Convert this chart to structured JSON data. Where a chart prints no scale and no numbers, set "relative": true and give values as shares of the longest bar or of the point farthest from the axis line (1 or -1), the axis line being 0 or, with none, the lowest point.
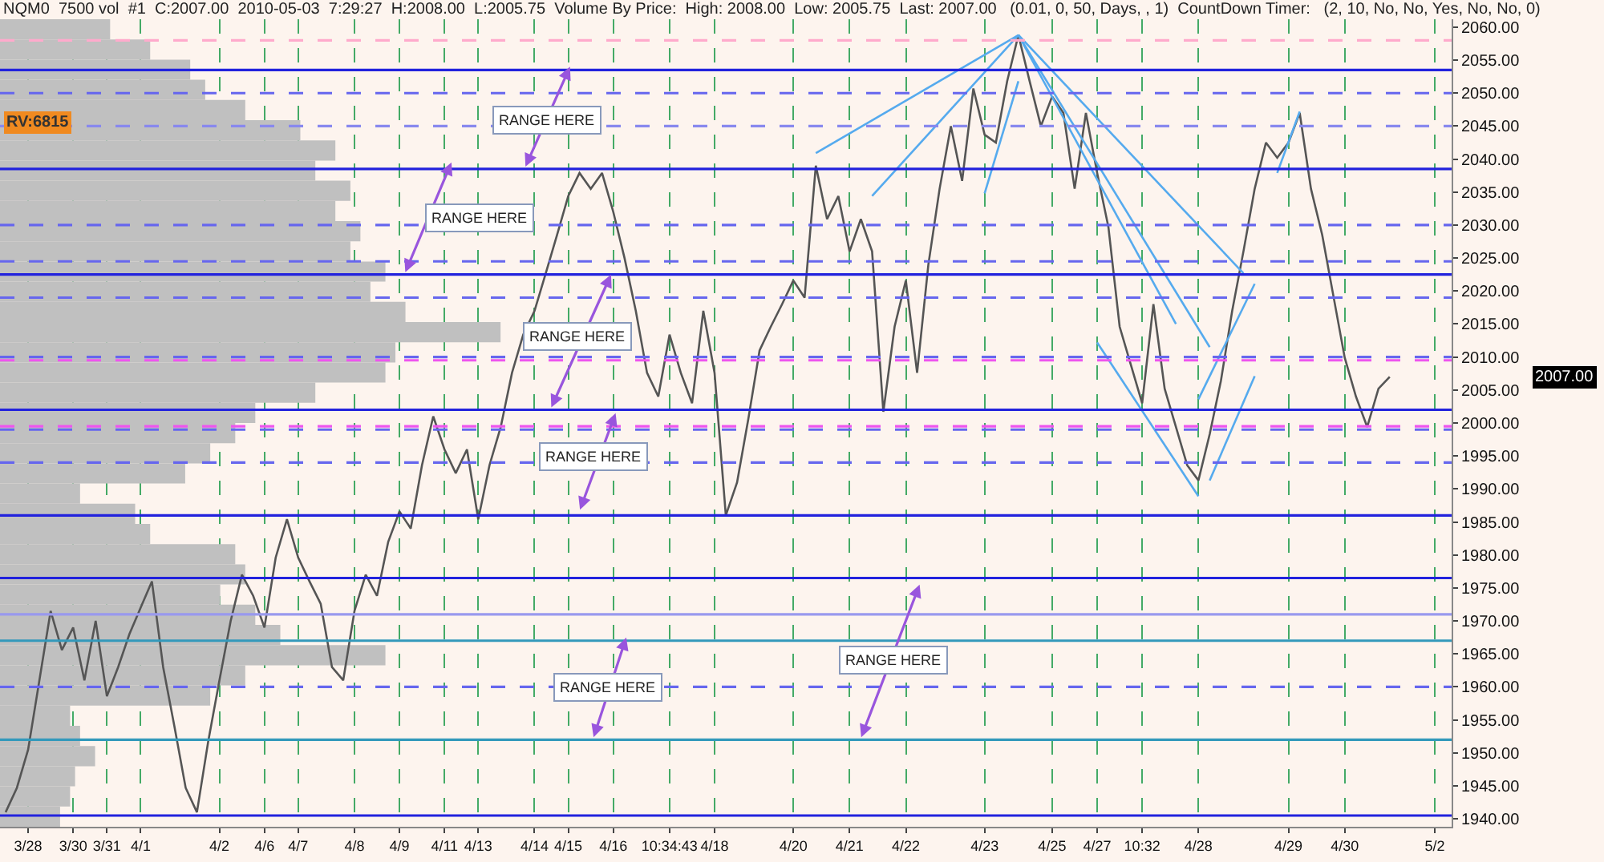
{
  "chart_data": [
    {
      "type": "line",
      "title": "NQM0  7500 vol  #1  C:2007.00  2010-05-03  7:29:27  H:2008.00  L:2005.75  Volume By Price:  High: 2008.00  Low: 2005.75  Last: 2007.00   (0.01, 0, 50, Days, , 1)  CountDown Timer:   (2, 10, No, No, Yes, No, No, 0)",
      "annotations": [
        "RV:6815",
        "RANGE HERE",
        "RANGE HERE",
        "RANGE HERE",
        "RANGE HERE",
        "RANGE HERE",
        "RANGE HERE",
        "2007.00"
      ],
      "categories": [
        null,
        null,
        "3/28",
        null,
        null,
        null,
        "3/30",
        null,
        null,
        "3/31",
        null,
        null,
        "4/1",
        null,
        null,
        null,
        null,
        null,
        null,
        "4/2",
        null,
        null,
        null,
        "4/6",
        null,
        null,
        "4/7",
        null,
        null,
        null,
        null,
        "4/8",
        null,
        null,
        null,
        "4/9",
        null,
        null,
        null,
        "4/11",
        null,
        null,
        "4/13",
        null,
        null,
        null,
        null,
        "4/14",
        null,
        null,
        "4/15",
        null,
        null,
        null,
        "4/16",
        null,
        null,
        null,
        null,
        "10:34:43",
        null,
        null,
        null,
        "4/18",
        null,
        null,
        null,
        null,
        null,
        null,
        "4/20",
        null,
        null,
        null,
        null,
        "4/21",
        null,
        null,
        null,
        null,
        "4/22",
        null,
        null,
        null,
        null,
        null,
        null,
        "4/23",
        null,
        null,
        null,
        null,
        null,
        "4/25",
        null,
        null,
        null,
        "4/27",
        null,
        null,
        null,
        "10:32",
        null,
        null,
        null,
        null,
        "4/28",
        null,
        null,
        null,
        null,
        null,
        null,
        null,
        "4/29",
        null,
        null,
        null,
        null,
        "4/30",
        null,
        null,
        null,
        null,
        null,
        null,
        null,
        "5/2",
        null
      ],
      "ylim": [
        1938.8,
        2061.2
      ],
      "yticks": [
        {
          "value": 1940,
          "label": "1940.00"
        },
        {
          "value": 1945,
          "label": "1945.00"
        },
        {
          "value": 1950,
          "label": "1950.00"
        },
        {
          "value": 1955,
          "label": "1955.00"
        },
        {
          "value": 1960,
          "label": "1960.00"
        },
        {
          "value": 1965,
          "label": "1965.00"
        },
        {
          "value": 1970,
          "label": "1970.00"
        },
        {
          "value": 1975,
          "label": "1975.00"
        },
        {
          "value": 1980,
          "label": "1980.00"
        },
        {
          "value": 1985,
          "label": "1985.00"
        },
        {
          "value": 1990,
          "label": "1990.00"
        },
        {
          "value": 1995,
          "label": "1995.00"
        },
        {
          "value": 2000,
          "label": "2000.00"
        },
        {
          "value": 2005,
          "label": "2005.00"
        },
        {
          "value": 2010,
          "label": "2010.00"
        },
        {
          "value": 2015,
          "label": "2015.00"
        },
        {
          "value": 2020,
          "label": "2020.00"
        },
        {
          "value": 2025,
          "label": "2025.00"
        },
        {
          "value": 2030,
          "label": "2030.00"
        },
        {
          "value": 2035,
          "label": "2035.00"
        },
        {
          "value": 2040,
          "label": "2040.00"
        },
        {
          "value": 2045,
          "label": "2045.00"
        },
        {
          "value": 2050,
          "label": "2050.00"
        },
        {
          "value": 2055,
          "label": "2055.00"
        },
        {
          "value": 2060,
          "label": "2060.00"
        }
      ],
      "grid": "x",
      "marker": "none",
      "line_style": "solid",
      "ref_lines": [
        {
          "axis": "y",
          "value": 2058,
          "color": "#ffaacc",
          "line_style": "dashed"
        },
        {
          "axis": "y",
          "value": 2053.5,
          "color": "#2222dd",
          "line_style": "solid"
        },
        {
          "axis": "y",
          "value": 2050,
          "color": "#6666ee",
          "line_style": "dashed"
        },
        {
          "axis": "y",
          "value": 2045,
          "color": "#8888ee",
          "line_style": "dashed"
        },
        {
          "axis": "y",
          "value": 2038.5,
          "color": "#2222dd",
          "line_style": "solid"
        },
        {
          "axis": "y",
          "value": 2030,
          "color": "#6666ee",
          "line_style": "dashed"
        },
        {
          "axis": "y",
          "value": 2024.5,
          "color": "#6666ee",
          "line_style": "dashed"
        },
        {
          "axis": "y",
          "value": 2022.5,
          "color": "#2222dd",
          "line_style": "solid"
        },
        {
          "axis": "y",
          "value": 2019,
          "color": "#6666ee",
          "line_style": "dashed"
        },
        {
          "axis": "y",
          "value": 2010,
          "color": "#6666ee",
          "line_style": "dashed"
        },
        {
          "axis": "y",
          "value": 2009.5,
          "color": "#ee55ee",
          "line_style": "dashed"
        },
        {
          "axis": "y",
          "value": 2002,
          "color": "#2222dd",
          "line_style": "solid"
        },
        {
          "axis": "y",
          "value": 1999.5,
          "color": "#ee55ee",
          "line_style": "dashed"
        },
        {
          "axis": "y",
          "value": 1999,
          "color": "#6666ee",
          "line_style": "dashed"
        },
        {
          "axis": "y",
          "value": 1994,
          "color": "#6666ee",
          "line_style": "dashed"
        },
        {
          "axis": "y",
          "value": 1986,
          "color": "#2222dd",
          "line_style": "solid"
        },
        {
          "axis": "y",
          "value": 1976.5,
          "color": "#2222dd",
          "line_style": "solid"
        },
        {
          "axis": "y",
          "value": 1971,
          "color": "#9999ee",
          "line_style": "solid"
        },
        {
          "axis": "y",
          "value": 1967,
          "color": "#3399bb",
          "line_style": "solid"
        },
        {
          "axis": "y",
          "value": 1960,
          "color": "#6666ee",
          "line_style": "dashed"
        },
        {
          "axis": "y",
          "value": 1952,
          "color": "#3399bb",
          "line_style": "solid"
        },
        {
          "axis": "y",
          "value": 1940.5,
          "color": "#2222dd",
          "line_style": "solid"
        }
      ],
      "series": [
        {
          "color": "#555555",
          "values": [
            1941,
            1944.7,
            1950.5,
            1961,
            1971.5,
            1965.6,
            1969,
            1961,
            1970,
            1958.6,
            1963,
            1968,
            1972,
            1976,
            1963,
            1954,
            1944.7,
            1941,
            1951.7,
            1961,
            1970,
            1977,
            1973.8,
            1969,
            1979.6,
            1985.4,
            1979.6,
            1976,
            1972.6,
            1963,
            1961,
            1971.5,
            1977,
            1973.8,
            1982,
            1986.6,
            1984,
            1993.6,
            2001,
            1996,
            1992.4,
            1996,
            1985.4,
            1993.6,
            1999.4,
            2007.6,
            2013.4,
            2017,
            2022.7,
            2028.5,
            2034.4,
            2037.9,
            2035.5,
            2037.9,
            2032,
            2025,
            2017,
            2007.6,
            2004,
            2013.4,
            2007.6,
            2003,
            2017,
            2007.6,
            1986,
            1991,
            2000.6,
            2011,
            2014.6,
            2018,
            2021.6,
            2019,
            2039,
            2030.9,
            2034.4,
            2026,
            2030.9,
            2026,
            2001.7,
            2014.6,
            2021.6,
            2007.6,
            2024,
            2035.5,
            2045,
            2036.7,
            2050.7,
            2043.7,
            2042.5,
            2051.8,
            2058.8,
            2051.8,
            2045,
            2049.5,
            2047,
            2035.5,
            2047,
            2037.9,
            2029.7,
            2014.6,
            2008.8,
            2003,
            2018,
            2005.2,
            1999.4,
            1993.6,
            1991.3,
            1998.3,
            2006.4,
            2017,
            2026,
            2035.5,
            2042.5,
            2040.2,
            2042.5,
            2047,
            2035.5,
            2028.5,
            2019.2,
            2009.9,
            2004,
            1999.4,
            2005.2,
            2007,
            null,
            null,
            null,
            null,
            null
          ]
        },
        {
          "type": "line",
          "color": "#55aaee",
          "values": [
            null,
            null,
            null,
            null,
            null,
            null,
            null,
            null,
            null,
            null,
            null,
            null,
            null,
            null,
            null,
            null,
            null,
            null,
            null,
            null,
            null,
            null,
            null,
            null,
            null,
            null,
            null,
            null,
            null,
            null,
            null,
            null,
            null,
            null,
            null,
            null,
            null,
            null,
            null,
            null,
            null,
            null,
            null,
            null,
            null,
            null,
            null,
            null,
            null,
            null,
            null,
            null,
            null,
            null,
            null,
            null,
            null,
            null,
            null,
            null,
            null,
            null,
            null,
            null,
            null,
            null,
            null,
            null,
            null,
            null,
            null,
            null,
            2040.9,
            null,
            null,
            null,
            null,
            null,
            null,
            null,
            null,
            null,
            null,
            null,
            null,
            null,
            null,
            null,
            null,
            null,
            2058.8,
            null,
            null,
            null,
            null,
            null,
            null,
            null,
            null,
            null,
            null,
            null,
            null,
            null,
            null,
            null,
            null,
            null,
            null,
            null,
            null,
            null,
            null,
            null,
            null,
            null,
            null,
            null,
            null,
            null,
            null,
            null,
            null,
            null,
            null,
            null,
            null,
            null,
            null
          ]
        },
        {
          "type": "line",
          "color": "#55aaee",
          "values": [
            null,
            null,
            null,
            null,
            null,
            null,
            null,
            null,
            null,
            null,
            null,
            null,
            null,
            null,
            null,
            null,
            null,
            null,
            null,
            null,
            null,
            null,
            null,
            null,
            null,
            null,
            null,
            null,
            null,
            null,
            null,
            null,
            null,
            null,
            null,
            null,
            null,
            null,
            null,
            null,
            null,
            null,
            null,
            null,
            null,
            null,
            null,
            null,
            null,
            null,
            null,
            null,
            null,
            null,
            null,
            null,
            null,
            null,
            null,
            null,
            null,
            null,
            null,
            null,
            null,
            null,
            null,
            null,
            null,
            null,
            null,
            null,
            null,
            null,
            null,
            null,
            null,
            2034.4,
            null,
            null,
            null,
            null,
            null,
            null,
            null,
            null,
            null,
            null,
            null,
            null,
            2058.8,
            null,
            null,
            null,
            null,
            null,
            null,
            null,
            null,
            null,
            null,
            null,
            null,
            null,
            null,
            null,
            null,
            null,
            null,
            null,
            null,
            null,
            null,
            null,
            null,
            null,
            null,
            null,
            null,
            null,
            null,
            null,
            null,
            null,
            null,
            null,
            null,
            null,
            null
          ]
        },
        {
          "type": "line",
          "color": "#55aaee",
          "values": [
            null,
            null,
            null,
            null,
            null,
            null,
            null,
            null,
            null,
            null,
            null,
            null,
            null,
            null,
            null,
            null,
            null,
            null,
            null,
            null,
            null,
            null,
            null,
            null,
            null,
            null,
            null,
            null,
            null,
            null,
            null,
            null,
            null,
            null,
            null,
            null,
            null,
            null,
            null,
            null,
            null,
            null,
            null,
            null,
            null,
            null,
            null,
            null,
            null,
            null,
            null,
            null,
            null,
            null,
            null,
            null,
            null,
            null,
            null,
            null,
            null,
            null,
            null,
            null,
            null,
            null,
            null,
            null,
            null,
            null,
            null,
            null,
            null,
            null,
            null,
            null,
            null,
            null,
            null,
            null,
            null,
            null,
            null,
            null,
            null,
            null,
            null,
            null,
            null,
            null,
            2058.8,
            null,
            null,
            null,
            null,
            null,
            null,
            null,
            null,
            null,
            null,
            null,
            null,
            null,
            null,
            null,
            null,
            null,
            null,
            null,
            2022.7,
            null,
            null,
            null,
            null,
            null,
            null,
            null,
            null,
            null,
            null,
            null,
            null,
            null,
            null,
            null,
            null,
            null,
            null
          ]
        },
        {
          "type": "line",
          "color": "#55aaee",
          "values": [
            null,
            null,
            null,
            null,
            null,
            null,
            null,
            null,
            null,
            null,
            null,
            null,
            null,
            null,
            null,
            null,
            null,
            null,
            null,
            null,
            null,
            null,
            null,
            null,
            null,
            null,
            null,
            null,
            null,
            null,
            null,
            null,
            null,
            null,
            null,
            null,
            null,
            null,
            null,
            null,
            null,
            null,
            null,
            null,
            null,
            null,
            null,
            null,
            null,
            null,
            null,
            null,
            null,
            null,
            null,
            null,
            null,
            null,
            null,
            null,
            null,
            null,
            null,
            null,
            null,
            null,
            null,
            null,
            null,
            null,
            null,
            null,
            null,
            null,
            null,
            null,
            null,
            null,
            null,
            null,
            null,
            null,
            null,
            null,
            null,
            null,
            null,
            null,
            null,
            null,
            2058.8,
            null,
            null,
            null,
            null,
            null,
            null,
            null,
            null,
            null,
            null,
            null,
            null,
            null,
            null,
            null,
            null,
            2011.5,
            null,
            null,
            null,
            null,
            null,
            null,
            null,
            null,
            null,
            null,
            null,
            null,
            null,
            null,
            null,
            null,
            null,
            null,
            null,
            null,
            null
          ]
        },
        {
          "type": "line",
          "color": "#55aaee",
          "values": [
            null,
            null,
            null,
            null,
            null,
            null,
            null,
            null,
            null,
            null,
            null,
            null,
            null,
            null,
            null,
            null,
            null,
            null,
            null,
            null,
            null,
            null,
            null,
            null,
            null,
            null,
            null,
            null,
            null,
            null,
            null,
            null,
            null,
            null,
            null,
            null,
            null,
            null,
            null,
            null,
            null,
            null,
            null,
            null,
            null,
            null,
            null,
            null,
            null,
            null,
            null,
            null,
            null,
            null,
            null,
            null,
            null,
            null,
            null,
            null,
            null,
            null,
            null,
            null,
            null,
            null,
            null,
            null,
            null,
            null,
            null,
            null,
            null,
            null,
            null,
            null,
            null,
            null,
            null,
            null,
            null,
            null,
            null,
            null,
            null,
            null,
            null,
            null,
            null,
            null,
            2058.8,
            null,
            null,
            null,
            null,
            null,
            null,
            null,
            null,
            null,
            null,
            null,
            null,
            null,
            2015,
            null,
            null,
            null,
            null,
            null,
            null,
            null,
            null,
            null,
            null,
            null,
            null,
            null,
            null,
            null,
            null,
            null,
            null,
            null,
            null,
            null,
            null,
            null,
            null
          ]
        },
        {
          "type": "line",
          "color": "#55aaee",
          "values": [
            null,
            null,
            null,
            null,
            null,
            null,
            null,
            null,
            null,
            null,
            null,
            null,
            null,
            null,
            null,
            null,
            null,
            null,
            null,
            null,
            null,
            null,
            null,
            null,
            null,
            null,
            null,
            null,
            null,
            null,
            null,
            null,
            null,
            null,
            null,
            null,
            null,
            null,
            null,
            null,
            null,
            null,
            null,
            null,
            null,
            null,
            null,
            null,
            null,
            null,
            null,
            null,
            null,
            null,
            null,
            null,
            null,
            null,
            null,
            null,
            null,
            null,
            null,
            null,
            null,
            null,
            null,
            null,
            null,
            null,
            null,
            null,
            null,
            null,
            null,
            null,
            null,
            null,
            null,
            null,
            null,
            null,
            null,
            null,
            null,
            null,
            null,
            2034.8,
            null,
            null,
            2051.8,
            null,
            null,
            null,
            null,
            null,
            null,
            null,
            null,
            null,
            null,
            null,
            null,
            null,
            null,
            null,
            null,
            null,
            null,
            null,
            null,
            null,
            null,
            null,
            null,
            null,
            null,
            null,
            null,
            null,
            null,
            null,
            null,
            null,
            null,
            null,
            null,
            null,
            null
          ]
        },
        {
          "type": "line",
          "color": "#55aaee",
          "values": [
            null,
            null,
            null,
            null,
            null,
            null,
            null,
            null,
            null,
            null,
            null,
            null,
            null,
            null,
            null,
            null,
            null,
            null,
            null,
            null,
            null,
            null,
            null,
            null,
            null,
            null,
            null,
            null,
            null,
            null,
            null,
            null,
            null,
            null,
            null,
            null,
            null,
            null,
            null,
            null,
            null,
            null,
            null,
            null,
            null,
            null,
            null,
            null,
            null,
            null,
            null,
            null,
            null,
            null,
            null,
            null,
            null,
            null,
            null,
            null,
            null,
            null,
            null,
            null,
            null,
            null,
            null,
            null,
            null,
            null,
            null,
            null,
            null,
            null,
            null,
            null,
            null,
            null,
            null,
            null,
            null,
            null,
            null,
            null,
            null,
            null,
            null,
            null,
            null,
            null,
            null,
            null,
            null,
            null,
            null,
            null,
            null,
            2012.2,
            null,
            null,
            null,
            null,
            null,
            null,
            null,
            null,
            1988.9,
            null,
            null,
            null,
            null,
            null,
            null,
            null,
            null,
            null,
            null,
            null,
            null,
            null,
            null,
            null,
            null,
            null,
            null,
            null,
            null,
            null,
            null
          ]
        },
        {
          "type": "line",
          "color": "#55aaee",
          "values": [
            null,
            null,
            null,
            null,
            null,
            null,
            null,
            null,
            null,
            null,
            null,
            null,
            null,
            null,
            null,
            null,
            null,
            null,
            null,
            null,
            null,
            null,
            null,
            null,
            null,
            null,
            null,
            null,
            null,
            null,
            null,
            null,
            null,
            null,
            null,
            null,
            null,
            null,
            null,
            null,
            null,
            null,
            null,
            null,
            null,
            null,
            null,
            null,
            null,
            null,
            null,
            null,
            null,
            null,
            null,
            null,
            null,
            null,
            null,
            null,
            null,
            null,
            null,
            null,
            null,
            null,
            null,
            null,
            null,
            null,
            null,
            null,
            null,
            null,
            null,
            null,
            null,
            null,
            null,
            null,
            null,
            null,
            null,
            null,
            null,
            null,
            null,
            null,
            null,
            null,
            null,
            null,
            null,
            null,
            null,
            null,
            null,
            null,
            null,
            null,
            null,
            null,
            null,
            null,
            null,
            null,
            2003.6,
            null,
            null,
            null,
            null,
            2021.1,
            null,
            null,
            null,
            null,
            null,
            null,
            null,
            null,
            null,
            null,
            null,
            null,
            null,
            null,
            null,
            null,
            null
          ]
        },
        {
          "type": "line",
          "color": "#55aaee",
          "values": [
            null,
            null,
            null,
            null,
            null,
            null,
            null,
            null,
            null,
            null,
            null,
            null,
            null,
            null,
            null,
            null,
            null,
            null,
            null,
            null,
            null,
            null,
            null,
            null,
            null,
            null,
            null,
            null,
            null,
            null,
            null,
            null,
            null,
            null,
            null,
            null,
            null,
            null,
            null,
            null,
            null,
            null,
            null,
            null,
            null,
            null,
            null,
            null,
            null,
            null,
            null,
            null,
            null,
            null,
            null,
            null,
            null,
            null,
            null,
            null,
            null,
            null,
            null,
            null,
            null,
            null,
            null,
            null,
            null,
            null,
            null,
            null,
            null,
            null,
            null,
            null,
            null,
            null,
            null,
            null,
            null,
            null,
            null,
            null,
            null,
            null,
            null,
            null,
            null,
            null,
            null,
            null,
            null,
            null,
            null,
            null,
            null,
            null,
            null,
            null,
            null,
            null,
            null,
            null,
            null,
            null,
            null,
            1991.3,
            null,
            null,
            null,
            2007.1,
            null,
            null,
            null,
            null,
            null,
            null,
            null,
            null,
            null,
            null,
            null,
            null,
            null,
            null,
            null,
            null,
            null
          ]
        },
        {
          "type": "line",
          "color": "#55aaee",
          "values": [
            null,
            null,
            null,
            null,
            null,
            null,
            null,
            null,
            null,
            null,
            null,
            null,
            null,
            null,
            null,
            null,
            null,
            null,
            null,
            null,
            null,
            null,
            null,
            null,
            null,
            null,
            null,
            null,
            null,
            null,
            null,
            null,
            null,
            null,
            null,
            null,
            null,
            null,
            null,
            null,
            null,
            null,
            null,
            null,
            null,
            null,
            null,
            null,
            null,
            null,
            null,
            null,
            null,
            null,
            null,
            null,
            null,
            null,
            null,
            null,
            null,
            null,
            null,
            null,
            null,
            null,
            null,
            null,
            null,
            null,
            null,
            null,
            null,
            null,
            null,
            null,
            null,
            null,
            null,
            null,
            null,
            null,
            null,
            null,
            null,
            null,
            null,
            null,
            null,
            null,
            null,
            null,
            null,
            null,
            null,
            null,
            null,
            null,
            null,
            null,
            null,
            null,
            null,
            null,
            null,
            null,
            null,
            null,
            null,
            null,
            null,
            null,
            null,
            2037.9,
            null,
            2047.2,
            null,
            null,
            null,
            null,
            null,
            null,
            null,
            null,
            null,
            null,
            null,
            null,
            null
          ]
        }
      ]
    },
    {
      "type": "bar",
      "orientation": "horizontal",
      "relative": true,
      "color": "#c0c0c0",
      "categories": [
        null,
        null,
        null,
        null,
        null,
        null,
        null,
        null,
        null,
        null,
        null,
        null,
        null,
        null,
        null,
        null,
        null,
        null,
        null,
        null,
        null,
        null,
        null,
        null,
        null,
        null,
        null,
        null,
        null,
        null,
        null,
        null,
        null,
        null,
        null,
        null,
        null,
        null,
        null,
        null
      ],
      "values": [
        0.22,
        0.3,
        0.38,
        0.41,
        0.49,
        0.6,
        0.67,
        0.63,
        0.7,
        0.67,
        0.72,
        0.7,
        0.77,
        0.74,
        0.81,
        1.0,
        0.79,
        0.77,
        0.63,
        0.51,
        0.47,
        0.42,
        0.37,
        0.16,
        0.27,
        0.3,
        0.47,
        0.49,
        0.44,
        0.51,
        0.56,
        0.77,
        0.49,
        0.42,
        0.14,
        0.16,
        0.19,
        0.15,
        0.14,
        0.12
      ]
    }
  ]
}
